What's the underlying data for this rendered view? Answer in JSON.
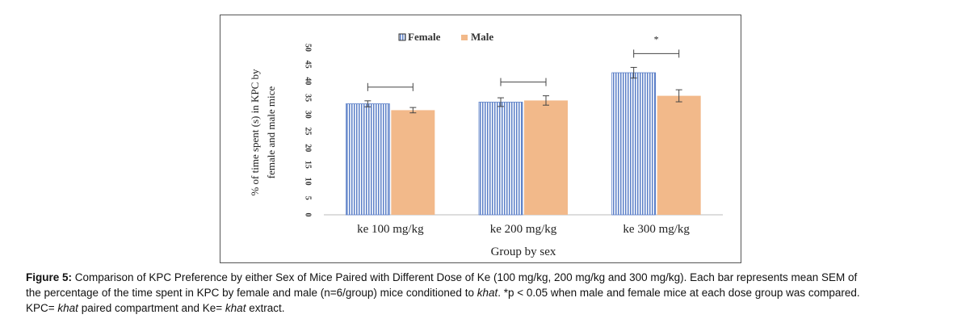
{
  "chart_data": {
    "type": "bar",
    "categories": [
      "ke 100 mg/kg",
      "ke 200 mg/kg",
      "ke 300 mg/kg"
    ],
    "series": [
      {
        "name": "Female",
        "values": [
          33.2,
          33.7,
          42.5
        ],
        "errors": [
          0.9,
          1.3,
          1.6
        ],
        "color": "#5b7fc7",
        "pattern": "vertical-stripes"
      },
      {
        "name": "Male",
        "values": [
          31.3,
          34.2,
          35.6
        ],
        "errors": [
          0.8,
          1.4,
          1.8
        ],
        "color": "#f2b98a",
        "pattern": "solid"
      }
    ],
    "xlabel": "Group by sex",
    "ylabel_lines": [
      "% of time spent (s) in KPC by",
      "female and male mice"
    ],
    "ylim": [
      0,
      50
    ],
    "yticks": [
      "0",
      "5",
      "10",
      "15",
      "20",
      "25",
      "30",
      "35",
      "40",
      "45",
      "50"
    ],
    "legend_position": "top-center",
    "grid": false,
    "significance": [
      "",
      "",
      "*"
    ]
  },
  "caption": {
    "label": "Figure 5:",
    "line1": "Comparison of KPC Preference by either Sex of Mice Paired with Different Dose of Ke (100 mg/kg, 200 mg/kg and 300 mg/kg). Each bar represents mean SEM of",
    "line2_a": "the percentage of the time spent in KPC by female and male (n=6/group) mice conditioned to ",
    "line2_italic": "khat",
    "line2_b": ". *p < 0.05 when male and female mice at each dose group was compared.",
    "line3_a": "KPC= ",
    "line3_italic1": "khat",
    "line3_b": " paired compartment and Ke= ",
    "line3_italic2": "khat",
    "line3_c": " extract."
  }
}
